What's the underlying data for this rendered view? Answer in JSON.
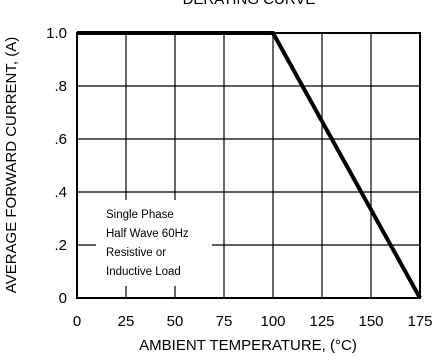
{
  "chart_data": {
    "type": "line",
    "title": "DERATING CURVE",
    "xlabel": "AMBIENT TEMPERATURE, (°C)",
    "ylabel": "AVERAGE FORWARD CURRENT, (A)",
    "xlim": [
      0,
      175
    ],
    "ylim": [
      0,
      1.0
    ],
    "x_ticks": [
      0,
      25,
      50,
      75,
      100,
      125,
      150,
      175
    ],
    "x_tick_labels": [
      "0",
      "25",
      "50",
      "75",
      "100",
      "125",
      "150",
      "175"
    ],
    "y_ticks": [
      0,
      0.2,
      0.4,
      0.6,
      0.8,
      1.0
    ],
    "y_tick_labels": [
      "0",
      ".2",
      ".4",
      ".6",
      ".8",
      "1.0"
    ],
    "grid": true,
    "series": [
      {
        "x": [
          0,
          100,
          175
        ],
        "y": [
          1.0,
          1.0,
          0
        ]
      }
    ],
    "annotation": [
      "Single Phase",
      "Half Wave 60Hz",
      "Resistive or",
      "Inductive Load"
    ],
    "colors": {
      "line": "#000000",
      "grid": "#000000",
      "background": "#ffffff"
    }
  }
}
